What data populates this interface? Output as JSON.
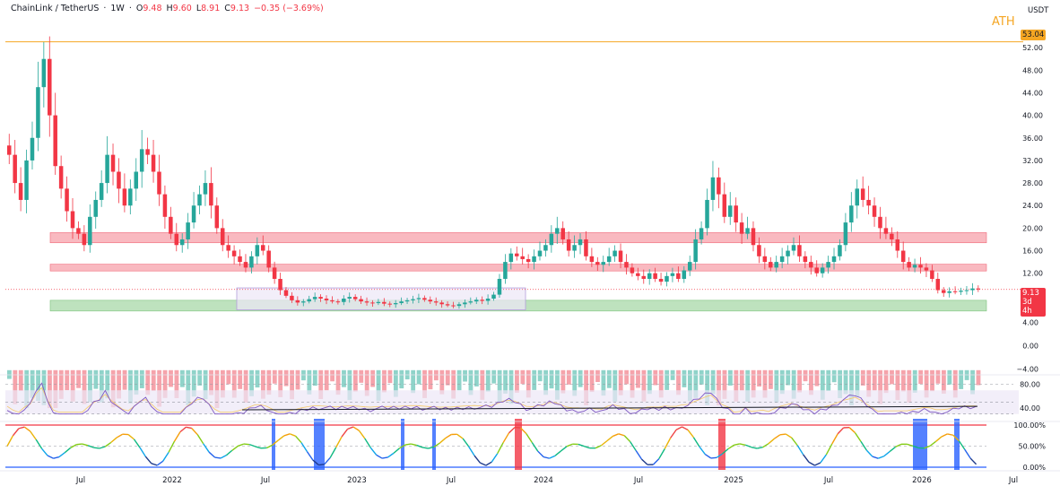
{
  "header": {
    "symbol": "ChainLink / TetherUS",
    "interval": "1W",
    "open_label": "O",
    "open": "9.48",
    "high_label": "H",
    "high": "9.60",
    "low_label": "L",
    "low": "8.91",
    "close_label": "C",
    "close": "9.13",
    "change": "−0.35 (−3.69%)"
  },
  "unit": "USDT",
  "ath_label": "ATH",
  "ath_value": "53.04",
  "price_badge": {
    "price": "9.13",
    "countdown": "3d 4h"
  },
  "colors": {
    "up": "#26a69a",
    "down": "#f23645",
    "resistance_zone": "#f7a1ab",
    "support_zone": "#a8d8a8",
    "ath_line": "#f5a623",
    "range_box": "#d1c4e9",
    "rsi_line": "#7e57c2"
  },
  "chart_data": [
    {
      "type": "candlestick",
      "title": "",
      "x_ticks": [
        "Jul",
        "2022",
        "Jul",
        "2023",
        "Jul",
        "2024",
        "Jul",
        "2025",
        "Jul",
        "2026",
        "Jul"
      ],
      "y_ticks": [
        "52.00",
        "48.00",
        "44.00",
        "40.00",
        "36.00",
        "32.00",
        "28.00",
        "24.00",
        "20.00",
        "16.00",
        "12.00"
      ],
      "ylim": [
        4,
        56
      ],
      "ath": 53.04,
      "last": 9.13,
      "zones": [
        {
          "kind": "resistance",
          "low": 17.4,
          "high": 19.2
        },
        {
          "kind": "resistance",
          "low": 12.4,
          "high": 13.6
        },
        {
          "kind": "support",
          "low": 5.3,
          "high": 7.2
        }
      ],
      "range_box": {
        "low": 5.5,
        "high": 9.4,
        "start": "2022-Jun",
        "end": "2023-Nov"
      },
      "closes_approx": [
        33,
        28,
        25,
        32,
        36,
        45,
        50,
        40,
        31,
        27,
        23,
        20,
        19,
        17,
        22,
        25,
        28,
        33,
        30,
        27,
        24,
        27,
        30,
        34,
        33,
        30,
        26,
        22,
        19,
        17,
        18,
        21,
        24,
        26,
        28,
        24,
        20,
        17,
        16,
        15,
        14,
        13,
        15,
        17,
        16,
        13,
        11,
        9,
        8,
        7.2,
        6.8,
        7.0,
        7.4,
        7.8,
        7.5,
        7.2,
        7.0,
        6.9,
        7.5,
        7.8,
        7.4,
        7.0,
        6.8,
        6.7,
        6.9,
        6.6,
        6.5,
        6.7,
        7.0,
        7.2,
        7.4,
        7.6,
        7.3,
        7.0,
        6.8,
        6.5,
        6.3,
        6.2,
        6.5,
        6.8,
        7.0,
        7.3,
        7.1,
        7.5,
        8.2,
        11,
        14,
        15.5,
        15,
        14.5,
        14,
        15,
        16,
        17,
        19,
        20,
        18,
        16,
        17,
        18,
        15,
        14,
        13.5,
        14,
        15,
        16,
        14,
        13,
        12,
        11.5,
        11,
        12,
        11,
        10.5,
        11.5,
        12,
        11,
        12.5,
        14,
        18,
        20,
        25,
        29,
        26,
        22,
        24,
        21,
        19,
        20,
        17,
        15,
        14,
        13,
        14,
        15,
        16,
        17,
        15,
        14,
        13,
        12,
        13,
        14,
        15,
        17,
        21,
        24,
        27,
        25,
        24,
        22,
        20,
        19,
        18,
        16,
        14,
        13,
        13.5,
        13,
        12.5,
        11,
        9,
        8.5,
        8.8,
        8.7,
        8.9,
        9.0,
        9.3,
        9.13
      ]
    },
    {
      "type": "oscillator",
      "title": "",
      "y_ticks": [
        "4.00",
        "0.00",
        "−4.00"
      ],
      "ylim": [
        -5,
        7
      ]
    },
    {
      "type": "line",
      "title": "",
      "y_ticks": [
        "80.00",
        "40.00"
      ],
      "ylim": [
        25,
        90
      ]
    },
    {
      "type": "line",
      "title": "",
      "y_ticks": [
        "100.00%",
        "50.00%",
        "0.00%"
      ],
      "ylim": [
        0,
        100
      ]
    }
  ]
}
